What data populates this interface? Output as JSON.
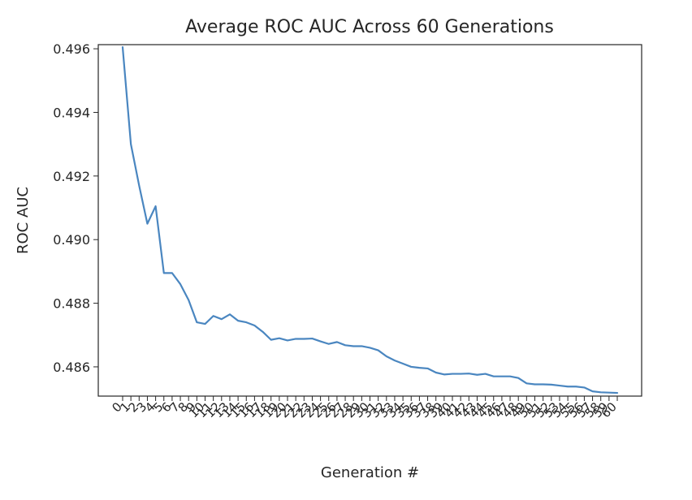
{
  "chart_data": {
    "type": "line",
    "title": "Average ROC AUC Across 60 Generations",
    "xlabel": "Generation #",
    "ylabel": "ROC AUC",
    "xlim": [
      0,
      60
    ],
    "ylim": [
      0.48508,
      0.49613
    ],
    "grid": false,
    "yticks": [
      0.486,
      0.488,
      0.49,
      0.492,
      0.494,
      0.496
    ],
    "ytick_labels": [
      "0.486",
      "0.488",
      "0.490",
      "0.492",
      "0.494",
      "0.496"
    ],
    "x": [
      0,
      1,
      2,
      3,
      4,
      5,
      6,
      7,
      8,
      9,
      10,
      11,
      12,
      13,
      14,
      15,
      16,
      17,
      18,
      19,
      20,
      21,
      22,
      23,
      24,
      25,
      26,
      27,
      28,
      29,
      30,
      31,
      32,
      33,
      34,
      35,
      36,
      37,
      38,
      39,
      40,
      41,
      42,
      43,
      44,
      45,
      46,
      47,
      48,
      49,
      50,
      51,
      52,
      53,
      54,
      55,
      56,
      57,
      58,
      59,
      60
    ],
    "xtick_labels": [
      "0",
      "1",
      "2",
      "3",
      "4",
      "5",
      "6",
      "7",
      "8",
      "9",
      "10",
      "11",
      "12",
      "13",
      "14",
      "15",
      "16",
      "17",
      "18",
      "19",
      "20",
      "21",
      "22",
      "23",
      "24",
      "25",
      "26",
      "27",
      "28",
      "29",
      "30",
      "31",
      "32",
      "33",
      "34",
      "35",
      "36",
      "37",
      "38",
      "39",
      "40",
      "41",
      "42",
      "43",
      "44",
      "45",
      "46",
      "47",
      "48",
      "49",
      "50",
      "51",
      "52",
      "53",
      "54",
      "55",
      "56",
      "57",
      "58",
      "59",
      "60"
    ],
    "series": [
      {
        "color": "#4a86c0",
        "values": [
          0.49605,
          0.493,
          0.4917,
          0.4905,
          0.49105,
          0.48895,
          0.48895,
          0.4886,
          0.4881,
          0.4874,
          0.48735,
          0.4876,
          0.4875,
          0.48765,
          0.48745,
          0.4874,
          0.4873,
          0.4871,
          0.48685,
          0.4869,
          0.48683,
          0.48688,
          0.48688,
          0.48689,
          0.4868,
          0.48672,
          0.48678,
          0.48668,
          0.48665,
          0.48665,
          0.4866,
          0.48652,
          0.48633,
          0.4862,
          0.4861,
          0.486,
          0.48597,
          0.48595,
          0.48582,
          0.48576,
          0.48578,
          0.48578,
          0.48579,
          0.48575,
          0.48578,
          0.4857,
          0.4857,
          0.4857,
          0.48565,
          0.48548,
          0.48545,
          0.48545,
          0.48544,
          0.48541,
          0.48538,
          0.48538,
          0.48535,
          0.48523,
          0.4852,
          0.48519,
          0.48518
        ]
      }
    ]
  }
}
